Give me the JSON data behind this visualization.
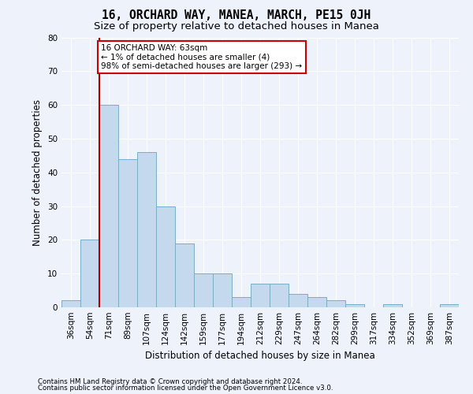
{
  "title": "16, ORCHARD WAY, MANEA, MARCH, PE15 0JH",
  "subtitle": "Size of property relative to detached houses in Manea",
  "xlabel": "Distribution of detached houses by size in Manea",
  "ylabel": "Number of detached properties",
  "categories": [
    "36sqm",
    "54sqm",
    "71sqm",
    "89sqm",
    "107sqm",
    "124sqm",
    "142sqm",
    "159sqm",
    "177sqm",
    "194sqm",
    "212sqm",
    "229sqm",
    "247sqm",
    "264sqm",
    "282sqm",
    "299sqm",
    "317sqm",
    "334sqm",
    "352sqm",
    "369sqm",
    "387sqm"
  ],
  "values": [
    2,
    20,
    60,
    44,
    46,
    30,
    19,
    10,
    10,
    3,
    7,
    7,
    4,
    3,
    2,
    1,
    0,
    1,
    0,
    0,
    1
  ],
  "bar_color": "#c5d9ee",
  "bar_edge_color": "#7aacc8",
  "background_color": "#eef2fb",
  "grid_color": "#ffffff",
  "vline_x": 1.5,
  "vline_color": "#aa0000",
  "annotation_text": "16 ORCHARD WAY: 63sqm\n← 1% of detached houses are smaller (4)\n98% of semi-detached houses are larger (293) →",
  "annotation_box_color": "#ffffff",
  "annotation_box_edge": "#cc0000",
  "ylim": [
    0,
    80
  ],
  "yticks": [
    0,
    10,
    20,
    30,
    40,
    50,
    60,
    70,
    80
  ],
  "footnote1": "Contains HM Land Registry data © Crown copyright and database right 2024.",
  "footnote2": "Contains public sector information licensed under the Open Government Licence v3.0.",
  "title_fontsize": 10.5,
  "subtitle_fontsize": 9.5,
  "xlabel_fontsize": 8.5,
  "ylabel_fontsize": 8.5,
  "tick_fontsize": 7.5,
  "footnote_fontsize": 6.2
}
